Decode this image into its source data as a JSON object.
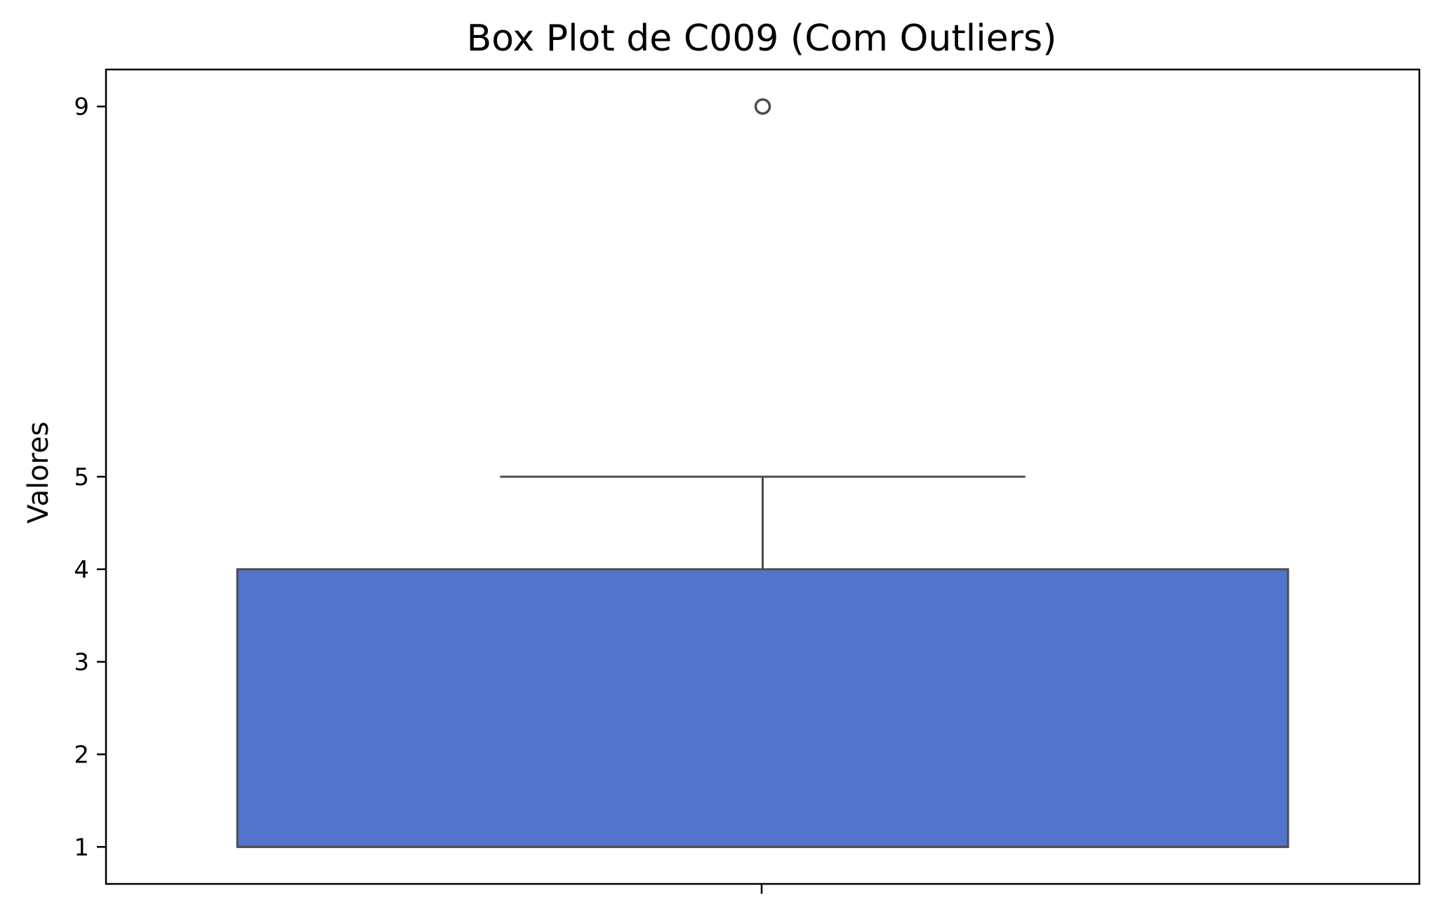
{
  "chart_data": {
    "type": "box",
    "title": "Box Plot de C009 (Com Outliers)",
    "xlabel": "",
    "ylabel": "Valores",
    "ylim": [
      0.6,
      9.4
    ],
    "yticks": [
      1,
      2,
      3,
      4,
      5,
      9
    ],
    "grid": false,
    "box": {
      "whisker_low": 1,
      "q1": 1,
      "median": 1,
      "q3": 4,
      "whisker_high": 5,
      "outliers": [
        9
      ]
    },
    "colors": {
      "box_fill": "#5473cc",
      "box_edge": "#4d4d4d"
    }
  }
}
